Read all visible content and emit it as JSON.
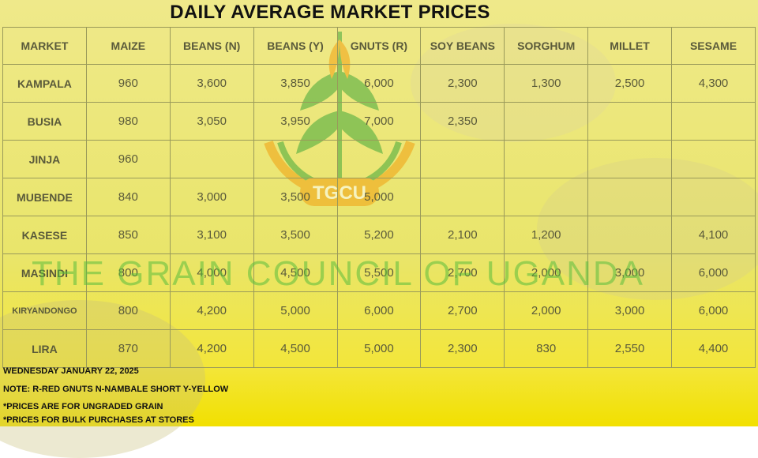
{
  "title": "DAILY AVERAGE MARKET PRICES",
  "watermark": "THE GRAIN COUNCIL OF UGANDA",
  "logo_text": "TGCU",
  "colors": {
    "table_text": "#5a5a3a",
    "watermark": "#5abe3c",
    "logo_green": "#43a83a",
    "logo_orange": "#f2a010"
  },
  "table": {
    "headers": [
      "MARKET",
      "MAIZE",
      "BEANS (N)",
      "BEANS (Y)",
      "GNUTS (R)",
      "SOY BEANS",
      "SORGHUM",
      "MILLET",
      "SESAME"
    ],
    "rows": [
      [
        "KAMPALA",
        "960",
        "3,600",
        "3,850",
        "6,000",
        "2,300",
        "1,300",
        "2,500",
        "4,300"
      ],
      [
        "BUSIA",
        "980",
        "3,050",
        "3,950",
        "7,000",
        "2,350",
        "",
        "",
        ""
      ],
      [
        "JINJA",
        "960",
        "",
        "",
        "",
        "",
        "",
        "",
        ""
      ],
      [
        "MUBENDE",
        "840",
        "3,000",
        "3,500",
        "5,000",
        "",
        "",
        "",
        ""
      ],
      [
        "KASESE",
        "850",
        "3,100",
        "3,500",
        "5,200",
        "2,100",
        "1,200",
        "",
        "4,100"
      ],
      [
        "MASINDI",
        "800",
        "4,000",
        "4,500",
        "5,500",
        "2,700",
        "2,000",
        "3,000",
        "6,000"
      ],
      [
        "KIRYANDONGO",
        "800",
        "4,200",
        "5,000",
        "6,000",
        "2,700",
        "2,000",
        "3,000",
        "6,000"
      ],
      [
        "LIRA",
        "870",
        "4,200",
        "4,500",
        "5,000",
        "2,300",
        "830",
        "2,550",
        "4,400"
      ]
    ]
  },
  "notes": {
    "date": "WEDNESDAY JANUARY 22, 2025",
    "legend": "NOTE: R-RED GNUTS  N-NAMBALE SHORT  Y-YELLOW",
    "ungraded": "*PRICES ARE FOR UNGRADED GRAIN",
    "bulk": "*PRICES FOR BULK PURCHASES AT STORES"
  }
}
